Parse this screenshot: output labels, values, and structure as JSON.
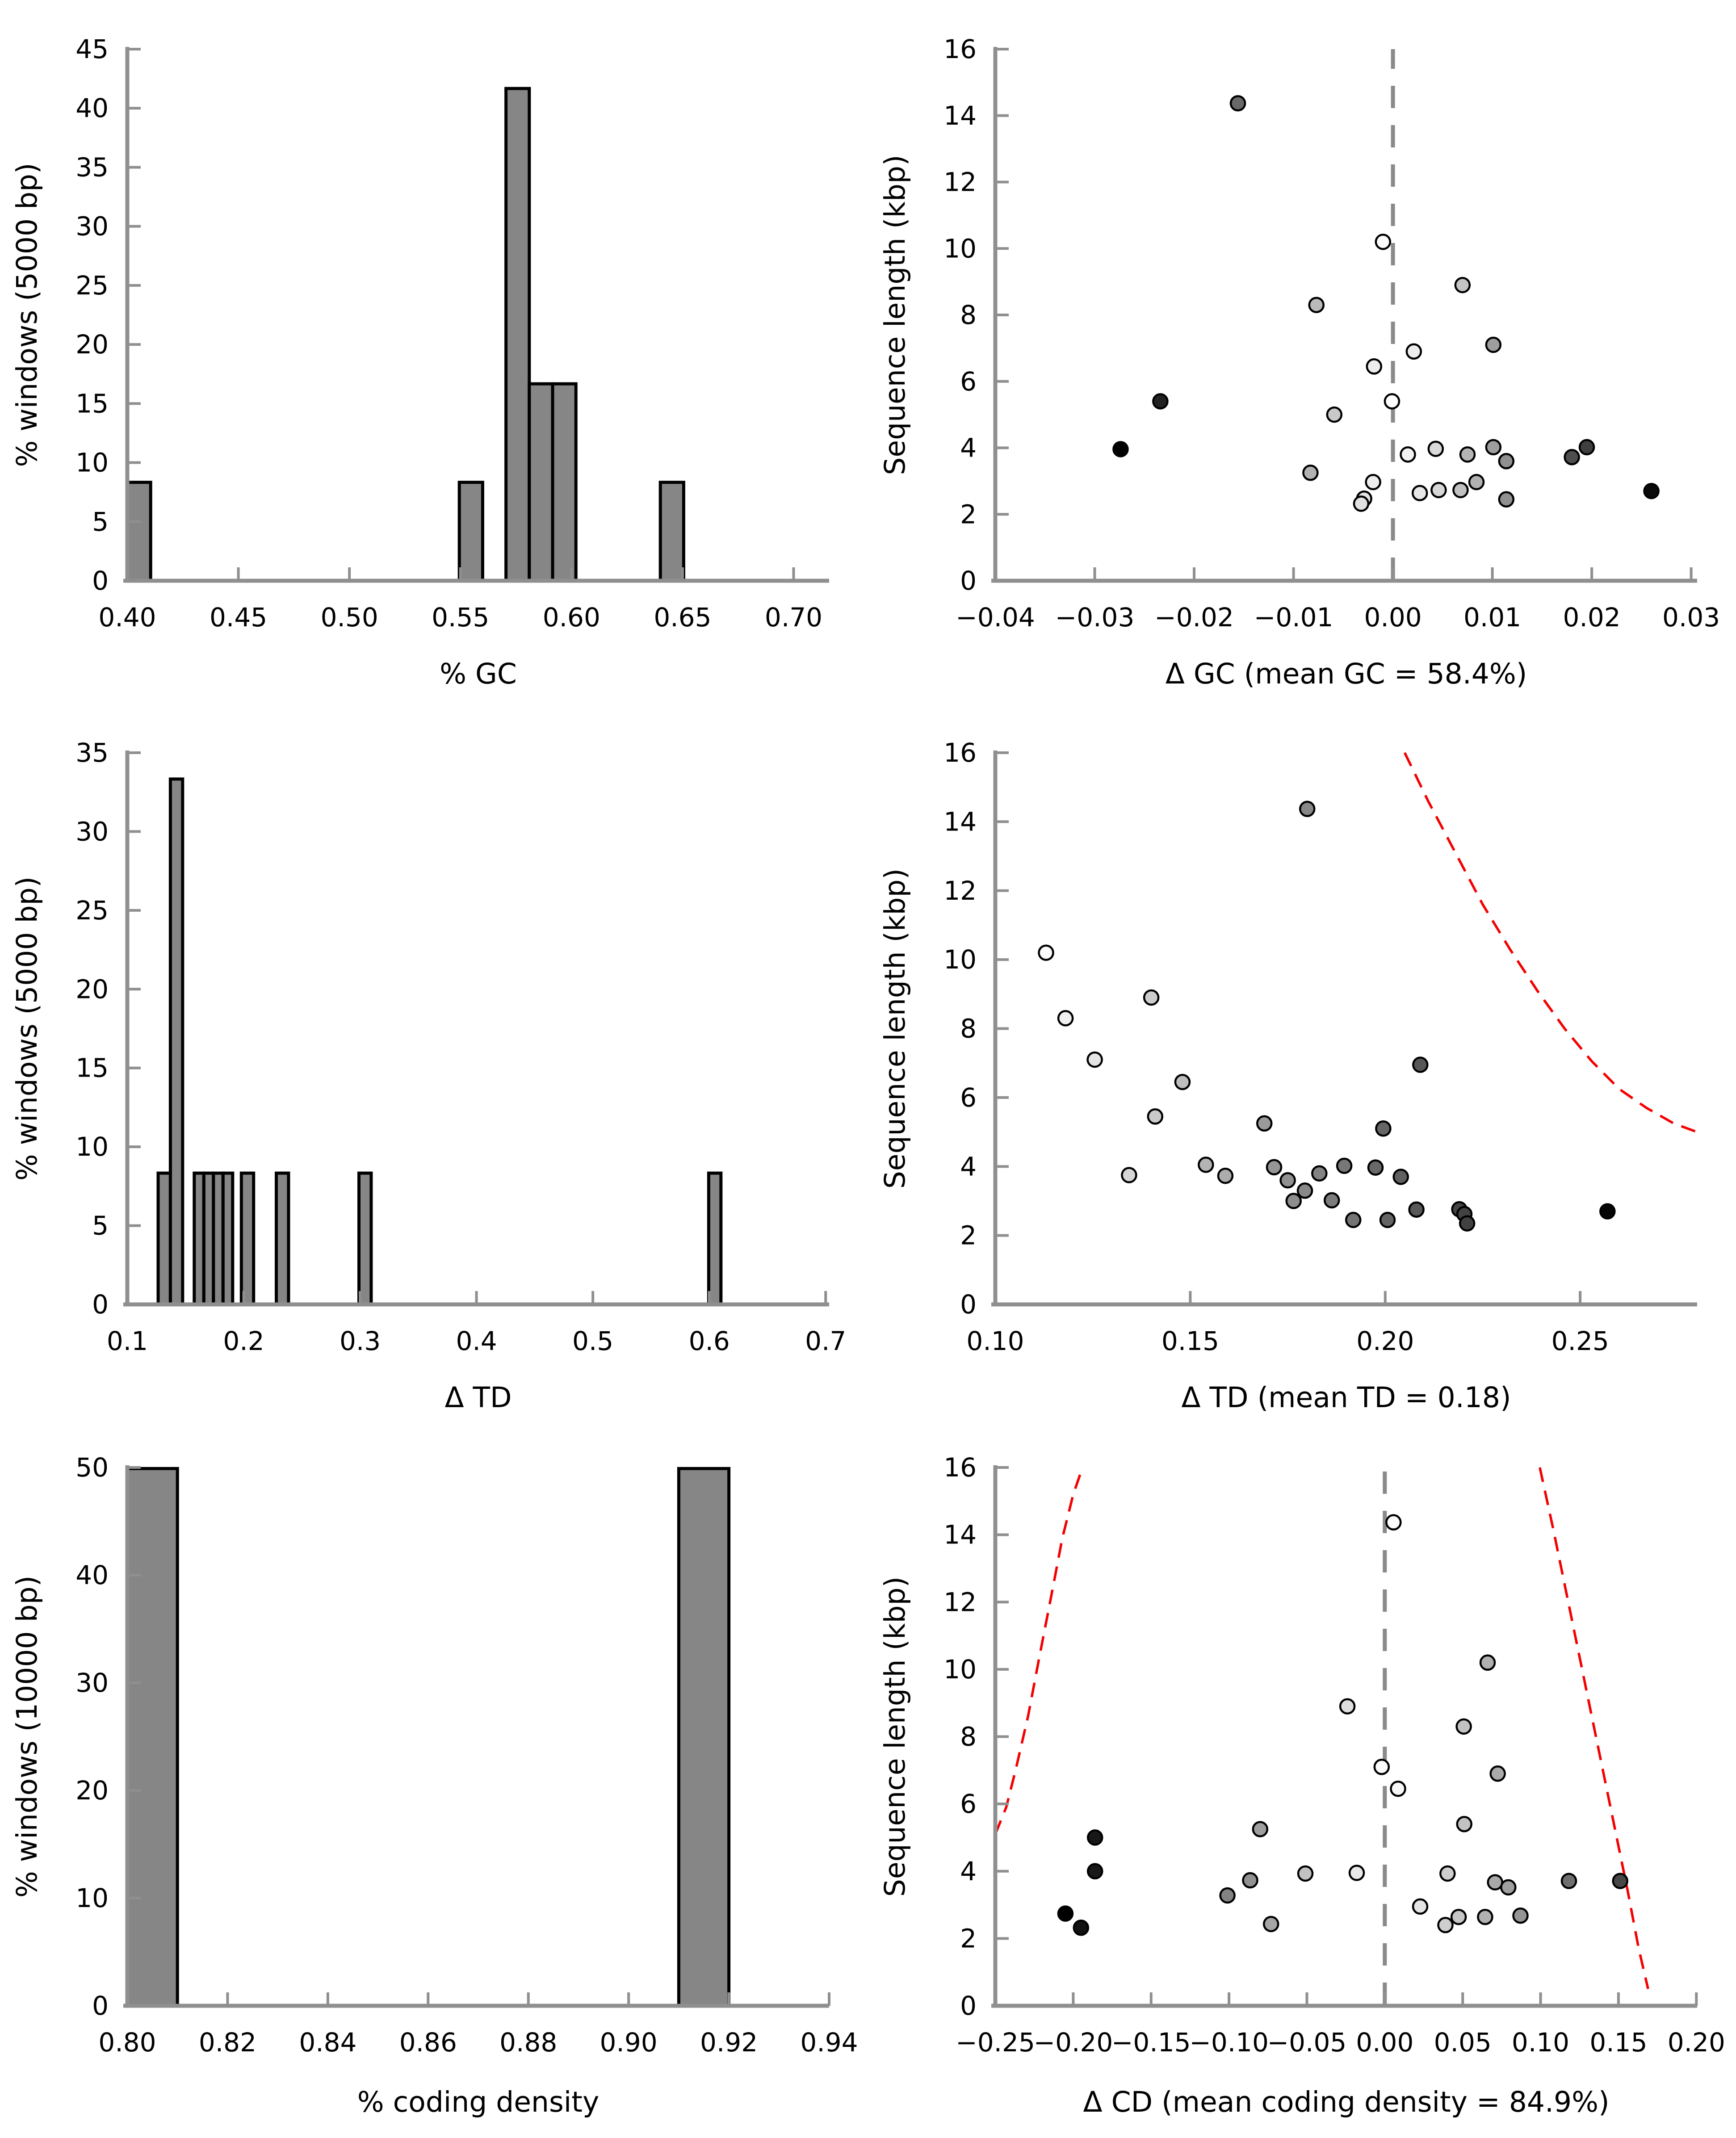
{
  "figure": {
    "background": "#ffffff",
    "styles": {
      "spine_color": "#8f8f8f",
      "tick_color": "#8f8f8f",
      "bar_fill": "#868686",
      "bar_edge": "#000000",
      "point_edge": "#000000",
      "mean_line_color": "#8a8a8a",
      "curve_color": "#f40000",
      "text_color": "#000000"
    }
  },
  "chart_data": [
    {
      "id": "gc-histogram",
      "type": "bar",
      "row": 1,
      "xlabel": "% GC",
      "ylabel": "% windows (5000 bp)",
      "xlim": [
        0.4,
        0.716
      ],
      "ylim": [
        0,
        45
      ],
      "xticks": [
        0.4,
        0.45,
        0.5,
        0.55,
        0.6,
        0.65,
        0.7
      ],
      "xtick_labels": [
        "0.40",
        "0.45",
        "0.50",
        "0.55",
        "0.60",
        "0.65",
        "0.70"
      ],
      "yticks": [
        0,
        5,
        10,
        15,
        20,
        25,
        30,
        35,
        40,
        45
      ],
      "ytick_labels": [
        "0",
        "5",
        "10",
        "15",
        "20",
        "25",
        "30",
        "35",
        "40",
        "45"
      ],
      "bar_width": 0.0105,
      "bars": [
        {
          "x": 0.4,
          "h": 8.33
        },
        {
          "x": 0.5495,
          "h": 8.33
        },
        {
          "x": 0.5705,
          "h": 41.67
        },
        {
          "x": 0.581,
          "h": 16.67
        },
        {
          "x": 0.5915,
          "h": 16.67
        },
        {
          "x": 0.64,
          "h": 8.33
        }
      ]
    },
    {
      "id": "gc-scatter",
      "type": "scatter",
      "row": 1,
      "xlabel": "Δ GC (mean GC = 58.4%)",
      "ylabel": "Sequence length (kbp)",
      "xlim": [
        -0.04,
        0.0306
      ],
      "ylim": [
        0,
        16
      ],
      "xticks": [
        -0.04,
        -0.03,
        -0.02,
        -0.01,
        0.0,
        0.01,
        0.02,
        0.03
      ],
      "xtick_labels": [
        "−0.04",
        "−0.03",
        "−0.02",
        "−0.01",
        "0.00",
        "0.01",
        "0.02",
        "0.03"
      ],
      "yticks": [
        0,
        2,
        4,
        6,
        8,
        10,
        12,
        14,
        16
      ],
      "ytick_labels": [
        "0",
        "2",
        "4",
        "6",
        "8",
        "10",
        "12",
        "14",
        "16"
      ],
      "mean_line_x": 0.0,
      "points": [
        [
          -0.0156,
          14.37,
          "#696969"
        ],
        [
          -0.001,
          10.2,
          "#fbfbfb"
        ],
        [
          0.007,
          8.9,
          "#c4c4c4"
        ],
        [
          -0.0077,
          8.3,
          "#bababa"
        ],
        [
          0.0101,
          7.1,
          "#9e9e9e"
        ],
        [
          0.0021,
          6.9,
          "#ededed"
        ],
        [
          -0.0019,
          6.45,
          "#ededed"
        ],
        [
          -0.0001,
          5.4,
          "#fdfdfd"
        ],
        [
          -0.0234,
          5.4,
          "#222222"
        ],
        [
          -0.0059,
          5.0,
          "#c9c9c9"
        ],
        [
          -0.0274,
          3.96,
          "#000000"
        ],
        [
          0.0015,
          3.8,
          "#f2f2f2"
        ],
        [
          0.0043,
          3.97,
          "#dadada"
        ],
        [
          0.0075,
          3.8,
          "#b5b5b5"
        ],
        [
          0.0101,
          4.02,
          "#9e9e9e"
        ],
        [
          0.0114,
          3.6,
          "#909090"
        ],
        [
          0.0195,
          4.02,
          "#3f3f3f"
        ],
        [
          0.018,
          3.72,
          "#4e4e4e"
        ],
        [
          -0.0083,
          3.25,
          "#b2b2b2"
        ],
        [
          -0.002,
          2.97,
          "#ededed"
        ],
        [
          -0.0029,
          2.47,
          "#e4e4e4"
        ],
        [
          -0.0032,
          2.32,
          "#e1e1e1"
        ],
        [
          0.0027,
          2.64,
          "#e7e7e7"
        ],
        [
          0.0046,
          2.73,
          "#d7d7d7"
        ],
        [
          0.0068,
          2.73,
          "#c1c1c1"
        ],
        [
          0.0084,
          2.97,
          "#b1b1b1"
        ],
        [
          0.0114,
          2.45,
          "#909090"
        ],
        [
          0.026,
          2.7,
          "#0a0a0a"
        ]
      ]
    },
    {
      "id": "td-histogram",
      "type": "bar",
      "row": 2,
      "xlabel": "Δ TD",
      "ylabel": "% windows (5000 bp)",
      "xlim": [
        0.1,
        0.703
      ],
      "ylim": [
        0,
        35
      ],
      "xticks": [
        0.1,
        0.2,
        0.3,
        0.4,
        0.5,
        0.6,
        0.7
      ],
      "xtick_labels": [
        "0.1",
        "0.2",
        "0.3",
        "0.4",
        "0.5",
        "0.6",
        "0.7"
      ],
      "yticks": [
        0,
        5,
        10,
        15,
        20,
        25,
        30,
        35
      ],
      "ytick_labels": [
        "0",
        "5",
        "10",
        "15",
        "20",
        "25",
        "30",
        "35"
      ],
      "bar_width": 0.0105,
      "bars": [
        {
          "x": 0.1265,
          "h": 8.33
        },
        {
          "x": 0.137,
          "h": 33.33
        },
        {
          "x": 0.1575,
          "w": 0.00825,
          "h": 8.33
        },
        {
          "x": 0.16575,
          "w": 0.00825,
          "h": 8.33
        },
        {
          "x": 0.174,
          "w": 0.00825,
          "h": 8.33
        },
        {
          "x": 0.18225,
          "w": 0.00825,
          "h": 8.33
        },
        {
          "x": 0.198,
          "h": 8.33
        },
        {
          "x": 0.228,
          "h": 8.33
        },
        {
          "x": 0.299,
          "h": 8.33
        },
        {
          "x": 0.5995,
          "h": 8.33
        }
      ]
    },
    {
      "id": "td-scatter",
      "type": "scatter",
      "row": 2,
      "xlabel": "Δ TD (mean TD = 0.18)",
      "ylabel": "Sequence length (kbp)",
      "xlim": [
        0.1,
        0.28
      ],
      "ylim": [
        0,
        16
      ],
      "xticks": [
        0.1,
        0.15,
        0.2,
        0.25
      ],
      "xtick_labels": [
        "0.10",
        "0.15",
        "0.20",
        "0.25"
      ],
      "yticks": [
        0,
        2,
        4,
        6,
        8,
        10,
        12,
        14,
        16
      ],
      "ytick_labels": [
        "0",
        "2",
        "4",
        "6",
        "8",
        "10",
        "12",
        "14",
        "16"
      ],
      "curves": [
        [
          [
            0.205,
            16.0
          ],
          [
            0.211,
            14.6
          ],
          [
            0.218,
            13.1
          ],
          [
            0.225,
            11.6
          ],
          [
            0.232,
            10.3
          ],
          [
            0.239,
            9.1
          ],
          [
            0.246,
            8.0
          ],
          [
            0.253,
            7.05
          ],
          [
            0.26,
            6.25
          ],
          [
            0.267,
            5.7
          ],
          [
            0.274,
            5.25
          ],
          [
            0.28,
            5.0
          ]
        ]
      ],
      "points": [
        [
          0.18,
          14.37,
          "#888888"
        ],
        [
          0.113,
          10.2,
          "#fbfbfb"
        ],
        [
          0.14,
          8.9,
          "#cccccc"
        ],
        [
          0.118,
          8.3,
          "#f1f1f1"
        ],
        [
          0.1255,
          7.1,
          "#e5e5e5"
        ],
        [
          0.209,
          6.95,
          "#575757"
        ],
        [
          0.148,
          6.45,
          "#bebebe"
        ],
        [
          0.141,
          5.45,
          "#cacaca"
        ],
        [
          0.169,
          5.25,
          "#9b9b9b"
        ],
        [
          0.1995,
          5.1,
          "#666666"
        ],
        [
          0.154,
          4.05,
          "#b4b4b4"
        ],
        [
          0.1715,
          3.98,
          "#969696"
        ],
        [
          0.1895,
          4.02,
          "#777777"
        ],
        [
          0.1975,
          3.97,
          "#696969"
        ],
        [
          0.1343,
          3.75,
          "#d6d6d6"
        ],
        [
          0.159,
          3.73,
          "#acacac"
        ],
        [
          0.175,
          3.6,
          "#919191"
        ],
        [
          0.1831,
          3.8,
          "#838383"
        ],
        [
          0.204,
          3.7,
          "#606060"
        ],
        [
          0.1794,
          3.3,
          "#888888"
        ],
        [
          0.1765,
          3.0,
          "#8d8d8d"
        ],
        [
          0.1863,
          3.02,
          "#7c7c7c"
        ],
        [
          0.1918,
          2.45,
          "#747474"
        ],
        [
          0.2006,
          2.45,
          "#646464"
        ],
        [
          0.208,
          2.75,
          "#585858"
        ],
        [
          0.219,
          2.76,
          "#454545"
        ],
        [
          0.2203,
          2.62,
          "#424242"
        ],
        [
          0.221,
          2.35,
          "#414141"
        ],
        [
          0.257,
          2.7,
          "#060606"
        ]
      ]
    },
    {
      "id": "cd-histogram",
      "type": "bar",
      "row": 3,
      "xlabel": "% coding density",
      "ylabel": "% windows (10000 bp)",
      "xlim": [
        0.8,
        0.94
      ],
      "ylim": [
        0,
        50
      ],
      "xticks": [
        0.8,
        0.82,
        0.84,
        0.86,
        0.88,
        0.9,
        0.92,
        0.94
      ],
      "xtick_labels": [
        "0.80",
        "0.82",
        "0.84",
        "0.86",
        "0.88",
        "0.90",
        "0.92",
        "0.94"
      ],
      "yticks": [
        0,
        10,
        20,
        30,
        40,
        50
      ],
      "ytick_labels": [
        "0",
        "10",
        "20",
        "30",
        "40",
        "50"
      ],
      "bar_width": 0.01,
      "bars": [
        {
          "x": 0.8,
          "h": 49.9
        },
        {
          "x": 0.91,
          "h": 49.9
        }
      ]
    },
    {
      "id": "cd-scatter",
      "type": "scatter",
      "row": 3,
      "xlabel": "Δ CD (mean coding density = 84.9%)",
      "ylabel": "Sequence length (kbp)",
      "xlim": [
        -0.25,
        0.2005
      ],
      "ylim": [
        0,
        16
      ],
      "xticks": [
        -0.25,
        -0.2,
        -0.15,
        -0.1,
        -0.05,
        0.0,
        0.05,
        0.1,
        0.15,
        0.2
      ],
      "xtick_labels": [
        "−0.25",
        "−0.20",
        "−0.15",
        "−0.10",
        "−0.05",
        "0.00",
        "0.05",
        "0.10",
        "0.15",
        "0.20"
      ],
      "yticks": [
        0,
        2,
        4,
        6,
        8,
        10,
        12,
        14,
        16
      ],
      "ytick_labels": [
        "0",
        "2",
        "4",
        "6",
        "8",
        "10",
        "12",
        "14",
        "16"
      ],
      "mean_line_x": 0.0,
      "curves": [
        [
          [
            -0.25,
            5.1
          ],
          [
            -0.243,
            5.9
          ],
          [
            -0.237,
            7.0
          ],
          [
            -0.229,
            8.6
          ],
          [
            -0.222,
            10.3
          ],
          [
            -0.214,
            12.2
          ],
          [
            -0.207,
            13.9
          ],
          [
            -0.2,
            15.2
          ],
          [
            -0.194,
            16.0
          ]
        ],
        [
          [
            0.0995,
            16.0
          ],
          [
            0.108,
            14.2
          ],
          [
            0.116,
            12.4
          ],
          [
            0.124,
            10.6
          ],
          [
            0.132,
            8.8
          ],
          [
            0.14,
            7.0
          ],
          [
            0.148,
            5.2
          ],
          [
            0.156,
            3.4
          ],
          [
            0.163,
            1.7
          ],
          [
            0.169,
            0.5
          ]
        ]
      ],
      "points": [
        [
          -0.205,
          2.74,
          "#000000"
        ],
        [
          -0.195,
          2.32,
          "#111111"
        ],
        [
          -0.186,
          5.0,
          "#181818"
        ],
        [
          -0.186,
          4.0,
          "#181818"
        ],
        [
          -0.101,
          3.28,
          "#828282"
        ],
        [
          -0.0864,
          3.73,
          "#919191"
        ],
        [
          -0.08,
          5.25,
          "#9e9e9e"
        ],
        [
          -0.073,
          2.43,
          "#a6a6a6"
        ],
        [
          -0.051,
          3.93,
          "#c2c2c2"
        ],
        [
          -0.024,
          8.9,
          "#dedede"
        ],
        [
          -0.018,
          3.95,
          "#e9e9e9"
        ],
        [
          -0.002,
          7.1,
          "#fbfbfb"
        ],
        [
          0.0056,
          14.37,
          "#fbfbfb"
        ],
        [
          0.0085,
          6.45,
          "#f7f7f7"
        ],
        [
          0.0227,
          2.95,
          "#e4e4e4"
        ],
        [
          0.0403,
          3.93,
          "#cecece"
        ],
        [
          0.0389,
          2.4,
          "#cfcfcf"
        ],
        [
          0.0474,
          2.64,
          "#c6c6c6"
        ],
        [
          0.0507,
          8.3,
          "#c2c2c2"
        ],
        [
          0.051,
          5.4,
          "#c2c2c2"
        ],
        [
          0.0644,
          2.64,
          "#b1b1b1"
        ],
        [
          0.066,
          10.2,
          "#b0b0b0"
        ],
        [
          0.0725,
          6.9,
          "#aaaaaa"
        ],
        [
          0.0708,
          3.67,
          "#a9a9a9"
        ],
        [
          0.0793,
          3.52,
          "#9f9f9f"
        ],
        [
          0.0871,
          2.68,
          "#959595"
        ],
        [
          0.1182,
          3.71,
          "#6f6f6f"
        ],
        [
          0.1511,
          3.71,
          "#474747"
        ]
      ]
    }
  ]
}
